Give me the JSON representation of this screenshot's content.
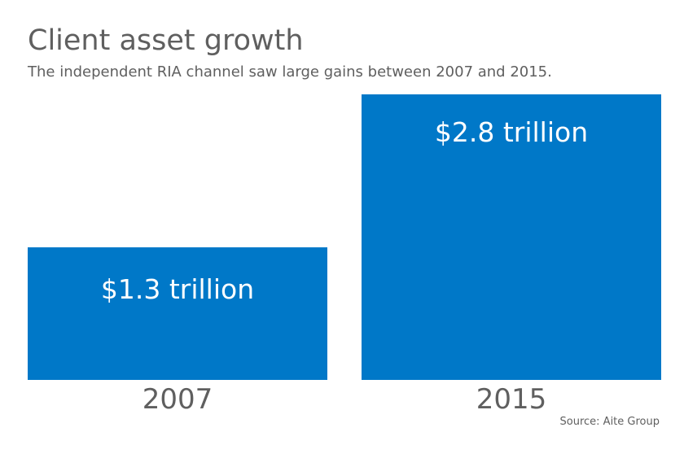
{
  "title": "Client asset growth",
  "subtitle": "The independent RIA channel saw large gains between 2007 and 2015.",
  "source": "Source: Aite Group",
  "chart_data": {
    "type": "bar",
    "categories": [
      "2007",
      "2015"
    ],
    "values": [
      1.3,
      2.8
    ],
    "value_labels": [
      "$1.3 trillion",
      "$2.8 trillion"
    ],
    "bar_color": "#0078c8",
    "grid": false,
    "legend": "none",
    "ylim": [
      0,
      2.8
    ]
  }
}
